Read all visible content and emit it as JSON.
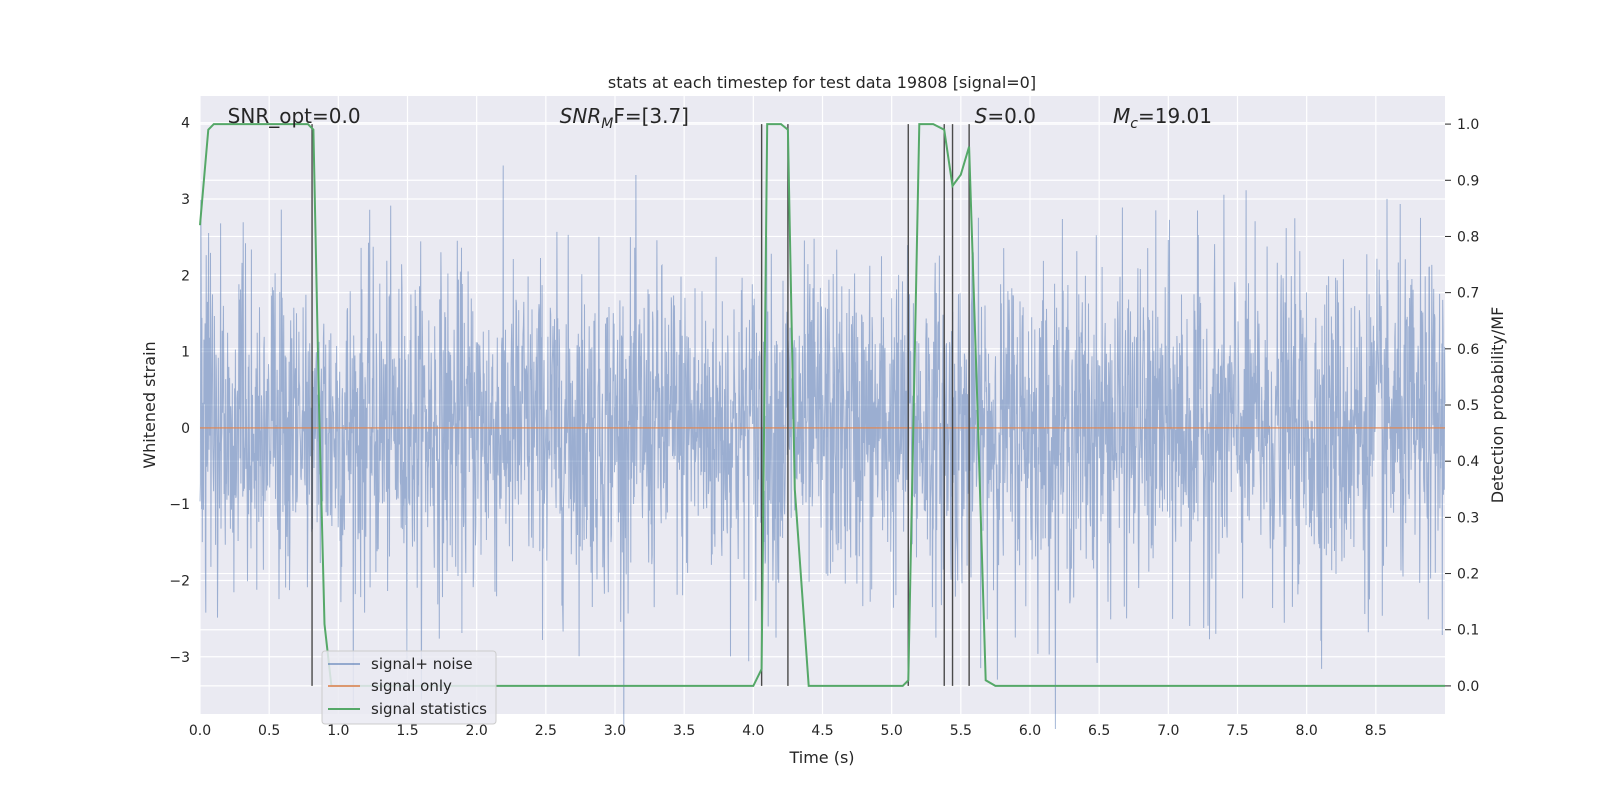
{
  "chart_data": {
    "type": "line",
    "title": "stats at each timestep for test data 19808 [signal=0]",
    "xlabel": "Time (s)",
    "ylabel": "Whitened strain",
    "y2label": "Detection probability/MF",
    "xlim": [
      0.0,
      9.0
    ],
    "ylim": [
      -3.75,
      4.35
    ],
    "y2lim": [
      -0.05,
      1.05
    ],
    "grid": true,
    "legend_placement": "lower-left",
    "x_ticks": [
      "0.0",
      "0.5",
      "1.0",
      "1.5",
      "2.0",
      "2.5",
      "3.0",
      "3.5",
      "4.0",
      "4.5",
      "5.0",
      "5.5",
      "6.0",
      "6.5",
      "7.0",
      "7.5",
      "8.0",
      "8.5"
    ],
    "y_ticks": [
      "−3",
      "−2",
      "−1",
      "0",
      "1",
      "2",
      "3",
      "4"
    ],
    "y2_ticks": [
      "0.0",
      "0.1",
      "0.2",
      "0.3",
      "0.4",
      "0.5",
      "0.6",
      "0.7",
      "0.8",
      "0.9",
      "1.0"
    ],
    "annotations": [
      {
        "text": "SNR_opt=0.0",
        "x": 0.2
      },
      {
        "base": "SNR",
        "sub": "M",
        "rest": "F=[3.7]",
        "x": 2.6
      },
      {
        "base": "S",
        "sub": "",
        "rest": "=0.0",
        "x": 5.6
      },
      {
        "base": "M",
        "sub": "c",
        "rest": "=19.01",
        "x": 6.6
      }
    ],
    "series": [
      {
        "name": "signal+ noise",
        "color": "#4c72b0",
        "amplitude_envelope": 4.0,
        "noise_std": 1.0
      },
      {
        "name": "signal only",
        "color": "#dd8452",
        "values_constant": 0.0
      },
      {
        "name": "signal statistics",
        "color": "#55a868",
        "x": [
          0.0,
          0.06,
          0.1,
          0.3,
          0.5,
          0.7,
          0.78,
          0.82,
          0.86,
          0.9,
          0.95,
          1.0,
          2.0,
          3.0,
          3.5,
          4.0,
          4.06,
          4.1,
          4.2,
          4.25,
          4.3,
          4.4,
          4.5,
          5.0,
          5.08,
          5.12,
          5.2,
          5.3,
          5.38,
          5.44,
          5.5,
          5.56,
          5.62,
          5.68,
          5.75,
          6.0,
          7.0,
          8.0,
          9.0
        ],
        "y": [
          0.82,
          0.99,
          1.0,
          1.0,
          1.0,
          1.0,
          1.0,
          0.99,
          0.5,
          0.11,
          0.0,
          0.0,
          0.0,
          0.0,
          0.0,
          0.0,
          0.03,
          1.0,
          1.0,
          0.99,
          0.35,
          0.0,
          0.0,
          0.0,
          0.0,
          0.01,
          1.0,
          1.0,
          0.99,
          0.89,
          0.91,
          0.96,
          0.5,
          0.01,
          0.0,
          0.0,
          0.0,
          0.0,
          0.0
        ]
      }
    ],
    "vertical_lines": [
      0.81,
      4.06,
      4.25,
      5.12,
      5.38,
      5.44,
      5.56
    ]
  },
  "legend": {
    "items": [
      "signal+ noise",
      "signal only",
      "signal statistics"
    ]
  }
}
